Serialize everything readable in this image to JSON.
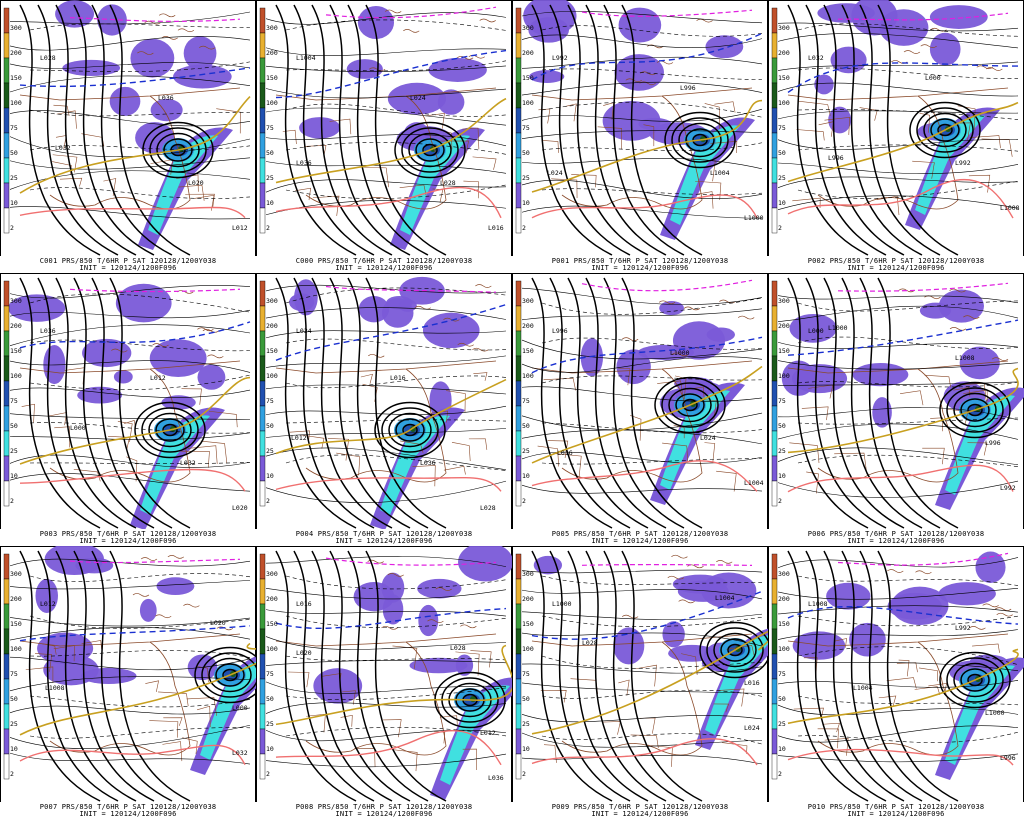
{
  "colorbar": {
    "ticks": [
      "300",
      "200",
      "150",
      "100",
      "75",
      "50",
      "25",
      "10",
      "2"
    ],
    "colors": [
      "#c0502a",
      "#e8b030",
      "#3a9a3a",
      "#1a5a1a",
      "#2050b0",
      "#30a0e0",
      "#40e0e0",
      "#7a5ad8",
      "#ffffff"
    ]
  },
  "contour_labels": [
    "L032",
    "L020",
    "L012",
    "L036",
    "L028",
    "L016",
    "L024",
    "L1004",
    "L1000",
    "L996",
    "L992",
    "L1008",
    "L000"
  ],
  "panels": [
    {
      "caption": "C001 PRS/850 T/6HR P SAT 120128/1200Y038",
      "init": "INIT = 120124/1200F096"
    },
    {
      "caption": "C000 PRS/850 T/6HR P SAT 120128/1200Y038",
      "init": "INIT = 120124/1200F096"
    },
    {
      "caption": "P001 PRS/850 T/6HR P SAT 120128/1200Y038",
      "init": "INIT = 120124/1200F096"
    },
    {
      "caption": "P002 PRS/850 T/6HR P SAT 120128/1200Y038",
      "init": "INIT = 120124/1200F096"
    },
    {
      "caption": "P003 PRS/850 T/6HR P SAT 120128/1200Y038",
      "init": "INIT = 120124/1200F096"
    },
    {
      "caption": "P004 PRS/850 T/6HR P SAT 120128/1200Y038",
      "init": "INIT = 120124/1200F096"
    },
    {
      "caption": "P005 PRS/850 T/6HR P SAT 120128/1200Y038",
      "init": "INIT = 120124/1200F096"
    },
    {
      "caption": "P006 PRS/850 T/6HR P SAT 120128/1200Y038",
      "init": "INIT = 120124/1200F096"
    },
    {
      "caption": "P007 PRS/850 T/6HR P SAT 120128/1200Y038",
      "init": "INIT = 120124/1200F096"
    },
    {
      "caption": "P008 PRS/850 T/6HR P SAT 120128/1200Y038",
      "init": "INIT = 120124/1200F096"
    },
    {
      "caption": "P009 PRS/850 T/6HR P SAT 120128/1200Y038",
      "init": "INIT = 120124/1200F096"
    },
    {
      "caption": "P010 PRS/850 T/6HR P SAT 120128/1200Y038",
      "init": "INIT = 120124/1200F096"
    }
  ]
}
